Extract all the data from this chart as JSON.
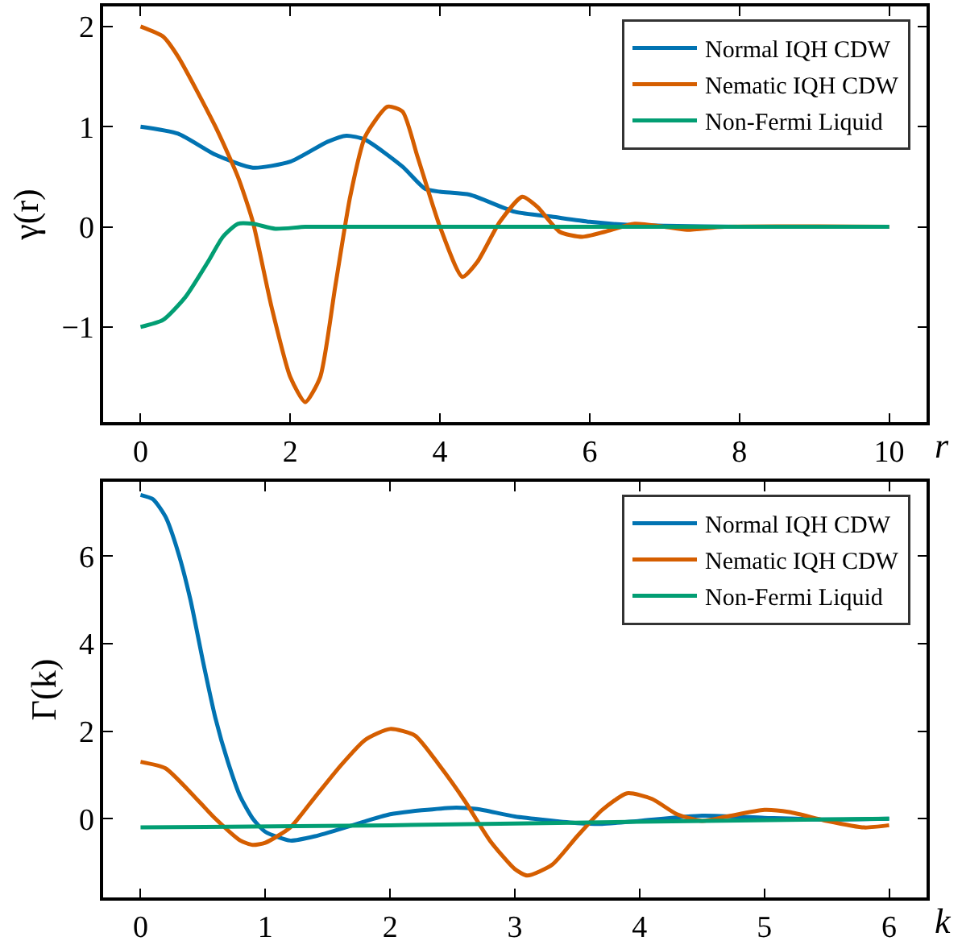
{
  "chart_data": [
    {
      "type": "line",
      "xlabel": "r",
      "ylabel": "γ(r)",
      "xlim": [
        -0.5,
        10.5
      ],
      "ylim": [
        -1.95,
        2.2
      ],
      "xticks": [
        0,
        2,
        4,
        6,
        8,
        10
      ],
      "yticks": [
        -1,
        0,
        1,
        2
      ],
      "legend": "top right",
      "series": [
        {
          "name": "Normal IQH CDW",
          "color": "#0173b2",
          "x": [
            0,
            0.5,
            1,
            1.5,
            2,
            2.5,
            2.75,
            3,
            3.5,
            3.8,
            4,
            4.4,
            5,
            5.5,
            6,
            6.5,
            7,
            8,
            10
          ],
          "values": [
            1,
            0.93,
            0.72,
            0.59,
            0.65,
            0.85,
            0.91,
            0.87,
            0.6,
            0.38,
            0.35,
            0.32,
            0.15,
            0.1,
            0.05,
            0.02,
            0.01,
            0,
            0
          ]
        },
        {
          "name": "Nematic IQH CDW",
          "color": "#d55e00",
          "x": [
            0,
            0.3,
            0.5,
            1,
            1.3,
            1.5,
            1.75,
            2,
            2.2,
            2.4,
            2.6,
            2.8,
            3.0,
            3.3,
            3.5,
            3.7,
            4,
            4.3,
            4.5,
            4.8,
            5.1,
            5.3,
            5.6,
            5.9,
            6.2,
            6.6,
            7,
            7.3,
            7.8,
            10
          ],
          "values": [
            2,
            1.9,
            1.7,
            1.0,
            0.5,
            0.05,
            -0.8,
            -1.5,
            -1.75,
            -1.5,
            -0.6,
            0.3,
            0.9,
            1.2,
            1.15,
            0.7,
            0.0,
            -0.5,
            -0.35,
            0.05,
            0.3,
            0.2,
            -0.05,
            -0.1,
            -0.05,
            0.03,
            0.0,
            -0.03,
            0,
            0
          ]
        },
        {
          "name": "Non-Fermi Liquid",
          "color": "#029e73",
          "x": [
            0,
            0.3,
            0.6,
            0.9,
            1.1,
            1.3,
            1.5,
            1.8,
            2.2,
            2.7,
            10
          ],
          "values": [
            -1,
            -0.93,
            -0.7,
            -0.35,
            -0.1,
            0.03,
            0.03,
            -0.02,
            0.0,
            0,
            0
          ]
        }
      ]
    },
    {
      "type": "line",
      "xlabel": "k",
      "ylabel": "Γ(k)",
      "xlim": [
        -0.3,
        6.3
      ],
      "ylim": [
        -1.8,
        7.7
      ],
      "xticks": [
        0,
        1,
        2,
        3,
        4,
        5,
        6
      ],
      "yticks": [
        0,
        2,
        4,
        6
      ],
      "legend": "top right",
      "series": [
        {
          "name": "Normal IQH CDW",
          "color": "#0173b2",
          "x": [
            0,
            0.1,
            0.2,
            0.3,
            0.4,
            0.5,
            0.6,
            0.7,
            0.8,
            0.9,
            1.0,
            1.2,
            1.4,
            1.7,
            2.0,
            2.5,
            2.7,
            3,
            3.5,
            3.7,
            4,
            4.5,
            5,
            5.5,
            6
          ],
          "values": [
            7.4,
            7.3,
            6.9,
            6.1,
            5.0,
            3.6,
            2.3,
            1.3,
            0.5,
            0.0,
            -0.3,
            -0.5,
            -0.4,
            -0.15,
            0.1,
            0.25,
            0.22,
            0.05,
            -0.1,
            -0.12,
            -0.05,
            0.07,
            0.02,
            -0.02,
            0
          ]
        },
        {
          "name": "Nematic IQH CDW",
          "color": "#d55e00",
          "x": [
            0,
            0.2,
            0.4,
            0.6,
            0.8,
            0.9,
            1.0,
            1.2,
            1.4,
            1.6,
            1.8,
            2.0,
            2.2,
            2.4,
            2.6,
            2.8,
            3.0,
            3.1,
            3.3,
            3.5,
            3.7,
            3.9,
            4.1,
            4.3,
            4.5,
            4.7,
            5.0,
            5.2,
            5.5,
            5.8,
            6
          ],
          "values": [
            1.3,
            1.15,
            0.6,
            0.0,
            -0.5,
            -0.6,
            -0.55,
            -0.2,
            0.5,
            1.2,
            1.8,
            2.05,
            1.9,
            1.2,
            0.4,
            -0.5,
            -1.15,
            -1.3,
            -1.05,
            -0.4,
            0.2,
            0.58,
            0.45,
            0.1,
            -0.05,
            0.05,
            0.2,
            0.15,
            -0.05,
            -0.2,
            -0.15
          ]
        },
        {
          "name": "Non-Fermi Liquid",
          "color": "#029e73",
          "x": [
            0,
            2,
            4,
            6
          ],
          "values": [
            -0.2,
            -0.15,
            -0.07,
            0.0
          ]
        }
      ]
    }
  ]
}
